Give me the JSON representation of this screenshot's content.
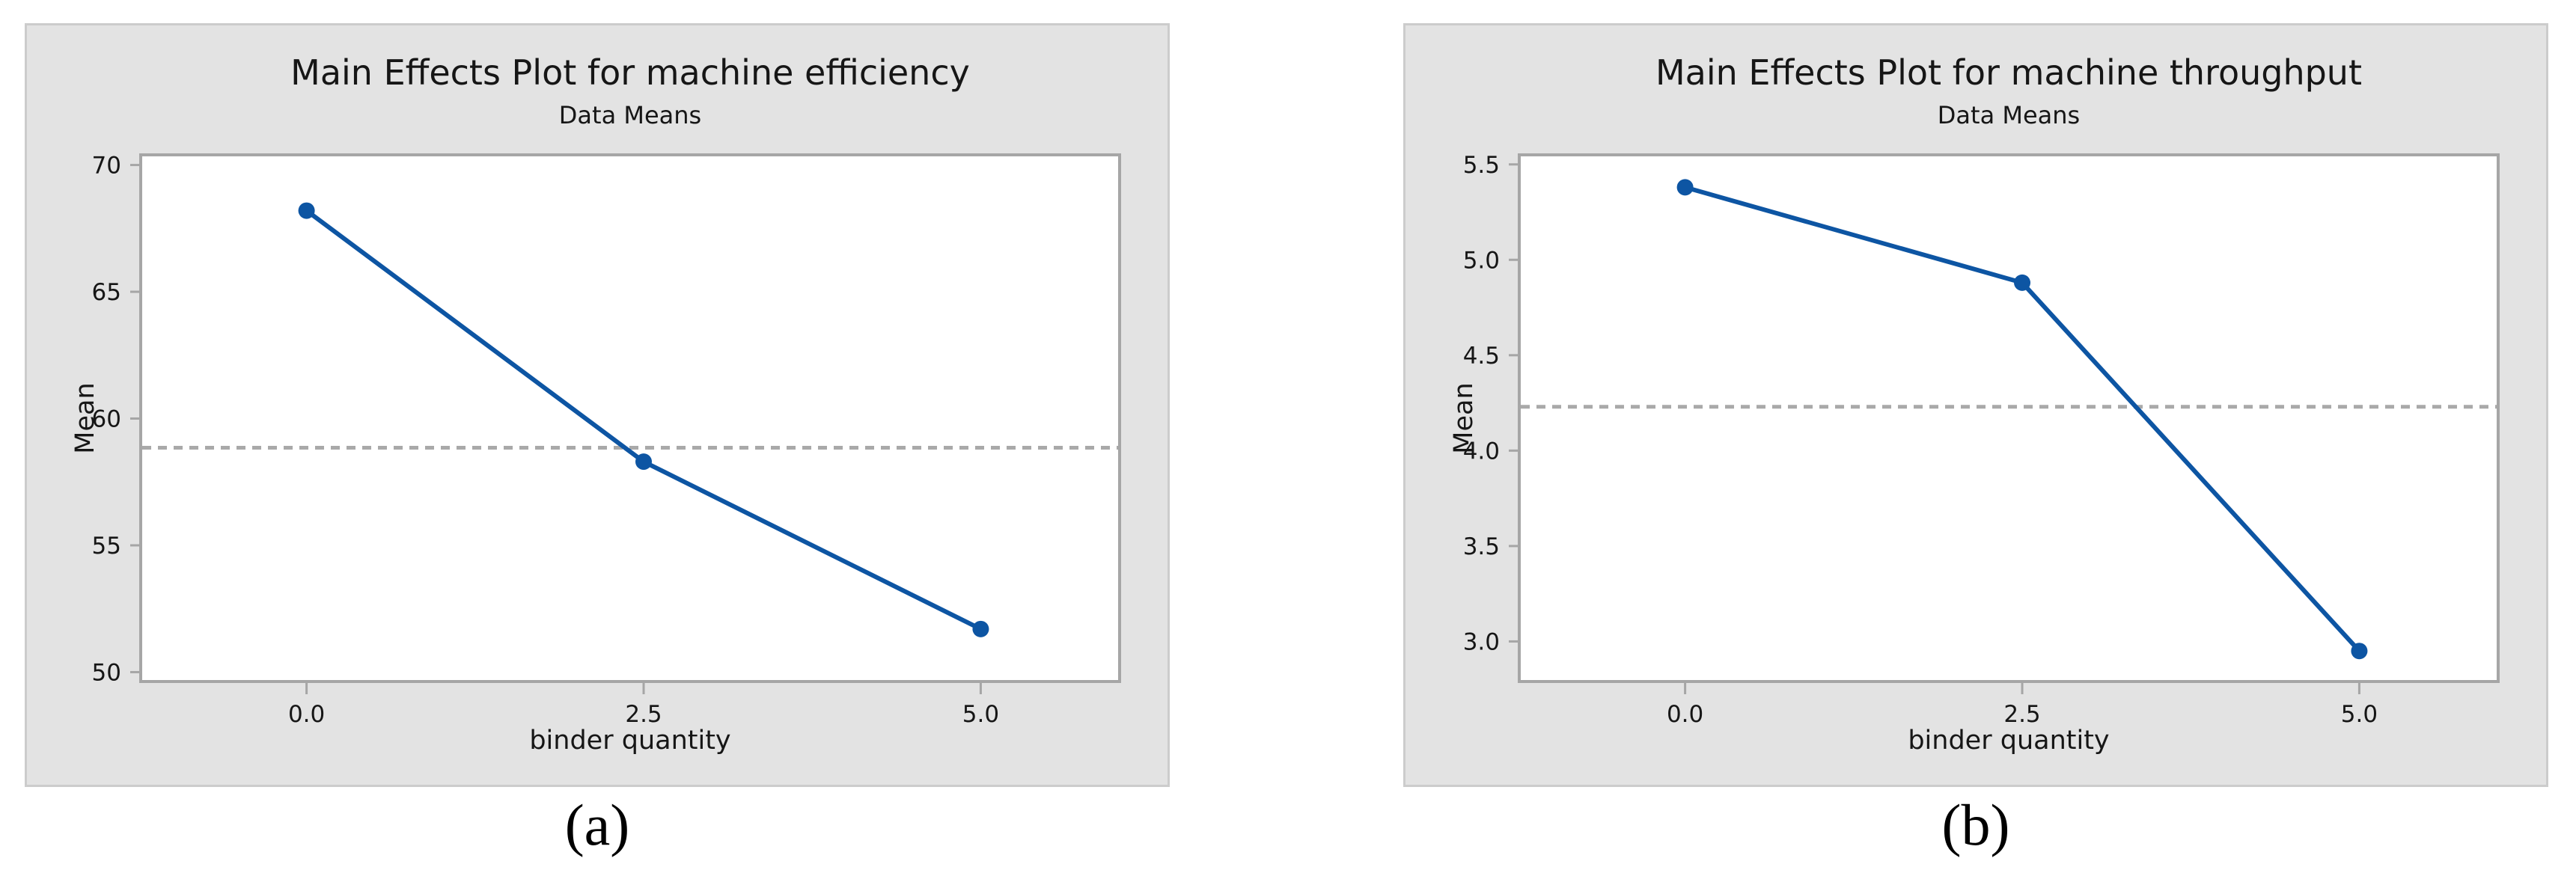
{
  "figure": {
    "panel_bg": "#e3e3e3",
    "panel_border": "#cccccc",
    "plot_bg": "#ffffff",
    "axis_color": "#a6a6a6",
    "ref_line_color": "#a9a9a9",
    "series_color": "#0d55a3",
    "text_color": "#161616"
  },
  "captions": {
    "left": "(a)",
    "right": "(b)"
  },
  "chart_data": [
    {
      "type": "line",
      "title": "Main Effects Plot for machine efficiency",
      "subtitle": "Data Means",
      "xlabel": "binder quantity",
      "ylabel": "Mean",
      "x": [
        0.0,
        2.5,
        5.0
      ],
      "x_tick_labels": [
        "0.0",
        "2.5",
        "5.0"
      ],
      "values": [
        68.2,
        58.3,
        51.7
      ],
      "reference_line_mean": 58.85,
      "ytick_values": [
        50,
        55,
        60,
        65,
        70
      ],
      "ytick_labels": [
        "50",
        "55",
        "60",
        "65",
        "70"
      ],
      "ylim": [
        49.63,
        70.4
      ],
      "xlim": [
        -1.23,
        6.03
      ],
      "marker": "circle",
      "grid": false,
      "legend": "none"
    },
    {
      "type": "line",
      "title": "Main Effects Plot for machine throughput",
      "subtitle": "Data Means",
      "xlabel": "binder quantity",
      "ylabel": "Mean",
      "x": [
        0.0,
        2.5,
        5.0
      ],
      "x_tick_labels": [
        "0.0",
        "2.5",
        "5.0"
      ],
      "values": [
        5.38,
        4.88,
        2.95
      ],
      "reference_line_mean": 4.23,
      "ytick_values": [
        3.0,
        3.5,
        4.0,
        4.5,
        5.0,
        5.5
      ],
      "ytick_labels": [
        "3.0",
        "3.5",
        "4.0",
        "4.5",
        "5.0",
        "5.5"
      ],
      "ylim": [
        2.79,
        5.55
      ],
      "xlim": [
        -1.23,
        6.03
      ],
      "marker": "circle",
      "grid": false,
      "legend": "none"
    }
  ]
}
